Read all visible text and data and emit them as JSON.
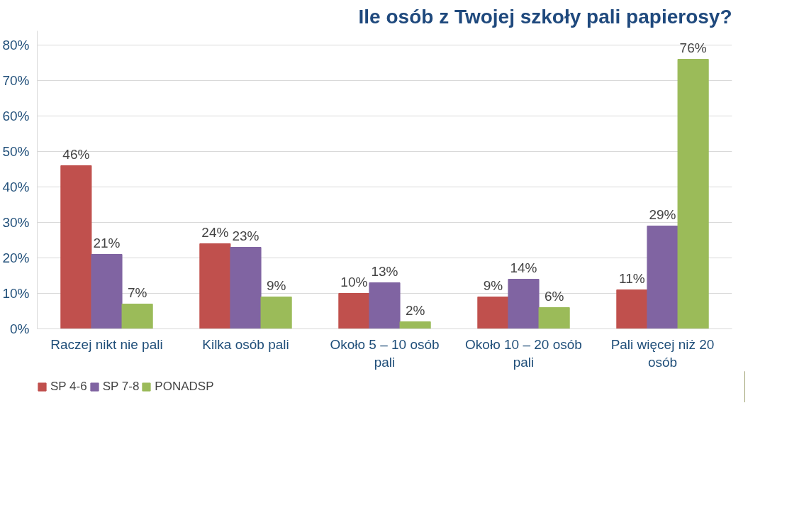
{
  "chart_data": {
    "type": "bar",
    "title": "Ile osób z Twojej szkoły pali papierosy?",
    "categories": [
      "Raczej nikt nie pali",
      "Kilka osób pali",
      "Około 5 – 10 osób pali",
      "Około 10 – 20 osób pali",
      "Pali więcej niż 20 osób"
    ],
    "series": [
      {
        "name": "SP 4-6",
        "color": "#c0504d",
        "values": [
          46,
          24,
          10,
          9,
          11
        ],
        "value_labels": [
          "46%",
          "24%",
          "10%",
          "9%",
          "11%"
        ]
      },
      {
        "name": "SP 7-8",
        "color": "#8064a2",
        "values": [
          21,
          23,
          13,
          14,
          29
        ],
        "value_labels": [
          "21%",
          "23%",
          "13%",
          "14%",
          "29%"
        ]
      },
      {
        "name": "PONADSP",
        "color": "#9bbb59",
        "values": [
          7,
          9,
          2,
          6,
          76
        ],
        "value_labels": [
          "7%",
          "9%",
          "2%",
          "6%",
          "76%"
        ]
      }
    ],
    "ylim": [
      0,
      84
    ],
    "yticks": [
      {
        "value": 0,
        "label": "0%"
      },
      {
        "value": 10,
        "label": "10%"
      },
      {
        "value": 20,
        "label": "20%"
      },
      {
        "value": 30,
        "label": "30%"
      },
      {
        "value": 40,
        "label": "40%"
      },
      {
        "value": 50,
        "label": "50%"
      },
      {
        "value": 60,
        "label": "60%"
      },
      {
        "value": 70,
        "label": "70%"
      },
      {
        "value": 80,
        "label": "80%"
      }
    ],
    "grid": "y",
    "legend": "bottom left"
  }
}
